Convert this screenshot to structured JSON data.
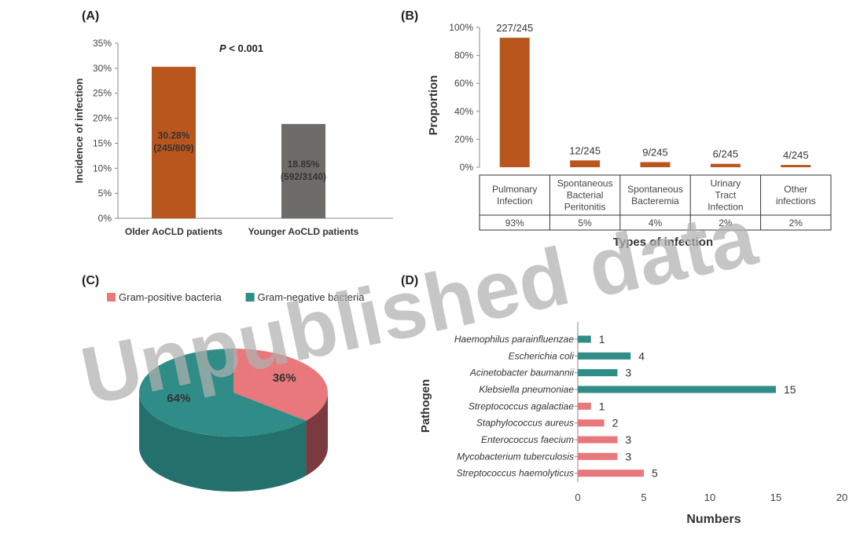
{
  "colors": {
    "orange": "#B8561E",
    "gray": "#6E6C69",
    "teal": "#2F8C87",
    "pink": "#E8787C",
    "axis": "#888888"
  },
  "chart_data": [
    {
      "panel": "(A)",
      "type": "bar",
      "categories": [
        "Older AoCLD patients",
        "Younger AoCLD patients"
      ],
      "values": [
        30.28,
        18.85
      ],
      "data_labels": [
        [
          "30.28%",
          "(245/809)"
        ],
        [
          "18.85%",
          "(592/3140)"
        ]
      ],
      "bar_colors": [
        "#B8561E",
        "#6E6C69"
      ],
      "ylabel": "Incidence of infection",
      "ylim": [
        0,
        35
      ],
      "yticks": [
        "0%",
        "5%",
        "10%",
        "15%",
        "20%",
        "25%",
        "30%",
        "35%"
      ],
      "annotation_italic": "P",
      "annotation_rest": " < 0.001"
    },
    {
      "panel": "(B)",
      "type": "bar",
      "categories": [
        [
          "Pulmonary",
          "Infection"
        ],
        [
          "Spontaneous",
          "Bacterial",
          "Peritonitis"
        ],
        [
          "Spontaneous",
          "Bacteremia"
        ],
        [
          "Urinary",
          "Tract",
          "Infection"
        ],
        [
          "Other",
          "infections"
        ]
      ],
      "values": [
        92.65,
        4.9,
        3.67,
        2.45,
        1.63
      ],
      "data_labels": [
        "227/245",
        "12/245",
        "9/245",
        "6/245",
        "4/245"
      ],
      "table_row": [
        "93%",
        "5%",
        "4%",
        "2%",
        "2%"
      ],
      "ylabel": "Proportion",
      "xlabel": "Types of infection",
      "ylim": [
        0,
        100
      ],
      "yticks": [
        "0%",
        "20%",
        "40%",
        "60%",
        "80%",
        "100%"
      ]
    },
    {
      "panel": "(C)",
      "type": "pie",
      "labels": [
        "Gram-positive bacteria",
        "Gram-negative bacteria"
      ],
      "values": [
        36,
        64
      ],
      "value_labels": [
        "36%",
        "64%"
      ],
      "colors": [
        "#E8787C",
        "#2F8C87"
      ],
      "legend": "top"
    },
    {
      "panel": "(D)",
      "type": "bar",
      "orientation": "horizontal",
      "categories": [
        "Haemophilus parainfluenzae",
        "Escherichia coli",
        "Acinetobacter baumannii",
        "Klebsiella pneumoniae",
        "Streptococcus agalactiae",
        "Staphylococcus aureus",
        "Enterococcus faecium",
        "Mycobacterium tuberculosis",
        "Streptococcus haemolyticus"
      ],
      "values": [
        1,
        4,
        3,
        15,
        1,
        2,
        3,
        3,
        5
      ],
      "data_labels": [
        "1",
        "4",
        "3",
        "15",
        "1",
        "2",
        "3",
        "3",
        "5"
      ],
      "bar_colors": [
        "#2F8C87",
        "#2F8C87",
        "#2F8C87",
        "#2F8C87",
        "#E8787C",
        "#E8787C",
        "#E8787C",
        "#E8787C",
        "#E8787C"
      ],
      "ylabel": "Pathogen",
      "xlabel": "Numbers",
      "xlim": [
        0,
        20
      ],
      "xticks": [
        "0",
        "5",
        "10",
        "15",
        "20"
      ]
    }
  ],
  "watermark": "Unpublished data"
}
